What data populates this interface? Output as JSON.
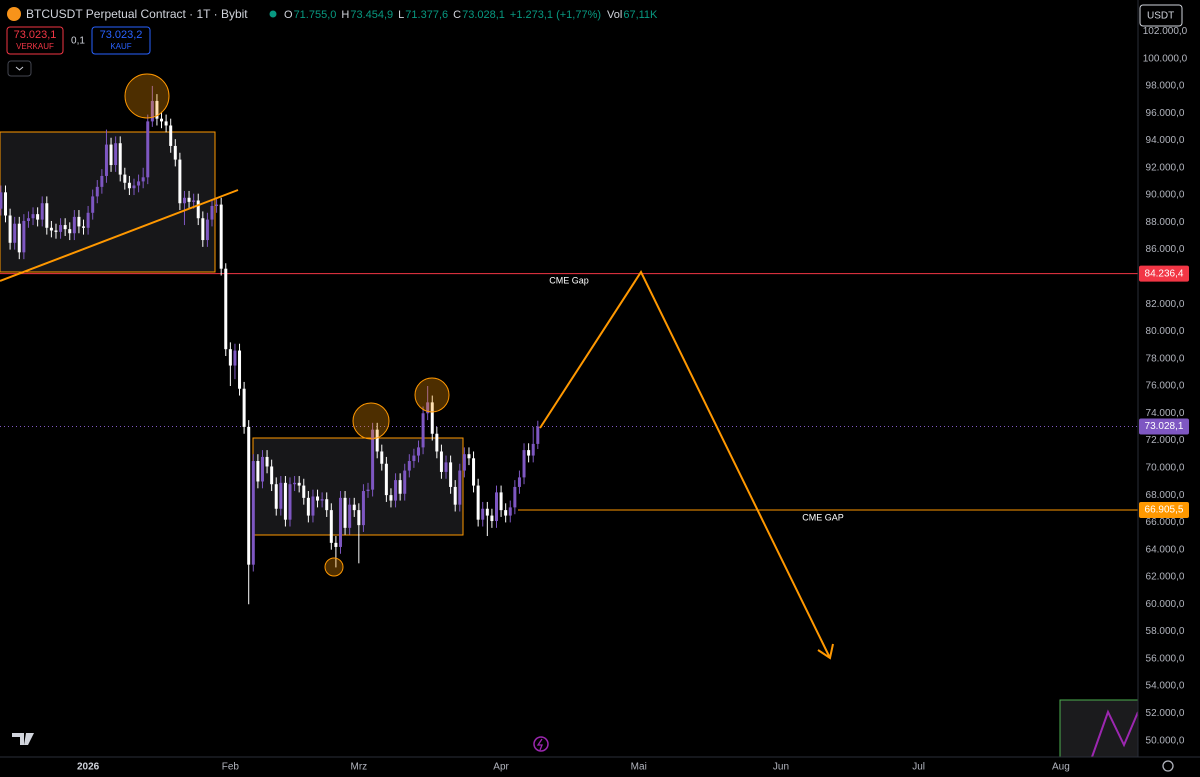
{
  "toolbar": {
    "symbol": "BTCUSDT Perpetual Contract · 1T · Bybit",
    "ohlc": [
      {
        "label": "O",
        "value": "71.755,0"
      },
      {
        "label": "H",
        "value": "73.454,9"
      },
      {
        "label": "L",
        "value": "71.377,6"
      },
      {
        "label": "C",
        "value": "73.028,1"
      }
    ],
    "change": "+1.273,1 (+1,77%)",
    "volume_label": "Vol",
    "volume": "67,11K",
    "sell": {
      "price": "73.023,1",
      "label": "VERKAUF"
    },
    "spread": "0,1",
    "buy": {
      "price": "73.023,2",
      "label": "KAUF"
    },
    "currency": "USDT"
  },
  "chart_data": {
    "type": "candlestick",
    "up_color": "#7e57c2",
    "down_color": "#ffffff",
    "grid": false,
    "xlim": [
      -19.2,
      228.8
    ],
    "xticks": [
      {
        "value": 0,
        "label": "2026"
      },
      {
        "value": 31,
        "label": "Feb"
      },
      {
        "value": 59,
        "label": "Mrz"
      },
      {
        "value": 90,
        "label": "Apr"
      },
      {
        "value": 120,
        "label": "Mai"
      },
      {
        "value": 151,
        "label": "Jun"
      },
      {
        "value": 181,
        "label": "Jul"
      },
      {
        "value": 212,
        "label": "Aug"
      }
    ],
    "ylim": [
      48800,
      104300
    ],
    "yticks": [
      {
        "value": 50000,
        "label": "50.000,0"
      },
      {
        "value": 52000,
        "label": "52.000,0"
      },
      {
        "value": 54000,
        "label": "54.000,0"
      },
      {
        "value": 56000,
        "label": "56.000,0"
      },
      {
        "value": 58000,
        "label": "58.000,0"
      },
      {
        "value": 60000,
        "label": "60.000,0"
      },
      {
        "value": 62000,
        "label": "62.000,0"
      },
      {
        "value": 64000,
        "label": "64.000,0"
      },
      {
        "value": 66000,
        "label": "66.000,0"
      },
      {
        "value": 68000,
        "label": "68.000,0"
      },
      {
        "value": 70000,
        "label": "70.000,0"
      },
      {
        "value": 72000,
        "label": "72.000,0"
      },
      {
        "value": 74000,
        "label": "74.000,0"
      },
      {
        "value": 76000,
        "label": "76.000,0"
      },
      {
        "value": 78000,
        "label": "78.000,0"
      },
      {
        "value": 80000,
        "label": "80.000,0"
      },
      {
        "value": 82000,
        "label": "82.000,0"
      },
      {
        "value": 84000,
        "label": "84.000,0"
      },
      {
        "value": 86000,
        "label": "86.000,0"
      },
      {
        "value": 88000,
        "label": "88.000,0"
      },
      {
        "value": 90000,
        "label": "90.000,0"
      },
      {
        "value": 92000,
        "label": "92.000,0"
      },
      {
        "value": 94000,
        "label": "94.000,0"
      },
      {
        "value": 96000,
        "label": "96.000,0"
      },
      {
        "value": 98000,
        "label": "98.000,0"
      },
      {
        "value": 100000,
        "label": "100.000,0"
      },
      {
        "value": 102000,
        "label": "102.000,0"
      }
    ],
    "x": [
      -19,
      -18,
      -17,
      -16,
      -15,
      -14,
      -13,
      -12,
      -11,
      -10,
      -9,
      -8,
      -7,
      -6,
      -5,
      -4,
      -3,
      -2,
      -1,
      0,
      1,
      2,
      3,
      4,
      5,
      6,
      7,
      8,
      9,
      10,
      11,
      12,
      13,
      14,
      15,
      16,
      17,
      18,
      19,
      20,
      21,
      22,
      23,
      24,
      25,
      26,
      27,
      28,
      29,
      30,
      31,
      32,
      33,
      34,
      35,
      36,
      37,
      38,
      39,
      40,
      41,
      42,
      43,
      44,
      45,
      46,
      47,
      48,
      49,
      50,
      51,
      52,
      53,
      54,
      55,
      56,
      57,
      58,
      59,
      60,
      61,
      62,
      63,
      64,
      65,
      66,
      67,
      68,
      69,
      70,
      71,
      72,
      73,
      74,
      75,
      76,
      77,
      78,
      79,
      80,
      81,
      82,
      83,
      84,
      85,
      86,
      87,
      88,
      89,
      90,
      91,
      92,
      93,
      94,
      95,
      96,
      97,
      98
    ],
    "open": [
      89000,
      90200,
      88500,
      86500,
      87900,
      85800,
      88100,
      88300,
      88600,
      88200,
      89400,
      87600,
      87400,
      87300,
      87800,
      87500,
      87200,
      88400,
      87700,
      87600,
      88700,
      89900,
      90600,
      91400,
      93700,
      92200,
      93800,
      91500,
      90900,
      90500,
      90700,
      91000,
      91300,
      95400,
      96900,
      95600,
      95400,
      95100,
      93600,
      92600,
      89400,
      89800,
      89500,
      89600,
      88300,
      86700,
      88200,
      89200,
      89300,
      84600,
      78700,
      77500,
      78600,
      75800,
      73000,
      62900,
      70500,
      69000,
      70800,
      70100,
      68800,
      67000,
      68900,
      66200,
      68800,
      68900,
      68700,
      67800,
      66500,
      67900,
      67600,
      67700,
      66900,
      64500,
      64200,
      67800,
      65600,
      67300,
      66900,
      65800,
      68300,
      68400,
      72800,
      71200,
      70300,
      68000,
      67600,
      69100,
      68100,
      69800,
      70500,
      70900,
      71500,
      74000,
      74800,
      72500,
      71200,
      69700,
      70400,
      68600,
      67300,
      69800,
      71000,
      70700,
      68700,
      66200,
      67000,
      66500,
      66100,
      68200,
      66900,
      66500,
      67100,
      68600,
      69300,
      71300,
      70900,
      71755
    ],
    "high": [
      90700,
      90700,
      89000,
      88400,
      88400,
      88600,
      88800,
      89100,
      89100,
      89900,
      89900,
      88100,
      87900,
      88300,
      88300,
      88000,
      88900,
      88900,
      88200,
      89200,
      90400,
      91100,
      91900,
      94800,
      94200,
      94300,
      94300,
      92000,
      91400,
      91200,
      91500,
      92000,
      95900,
      98000,
      97400,
      96100,
      95900,
      95600,
      94100,
      93100,
      90300,
      90300,
      90100,
      90100,
      88800,
      88700,
      89700,
      89800,
      89800,
      85000,
      79200,
      79100,
      79100,
      76300,
      73500,
      71000,
      71000,
      71300,
      71300,
      70600,
      69300,
      69400,
      69400,
      69300,
      69400,
      69400,
      69200,
      68300,
      68400,
      68400,
      68200,
      68200,
      67400,
      65000,
      68300,
      68300,
      67800,
      67800,
      67400,
      68800,
      68900,
      73300,
      73300,
      71700,
      70800,
      68500,
      69600,
      69600,
      70300,
      71000,
      71400,
      72000,
      74500,
      76000,
      75300,
      73000,
      71700,
      70900,
      70900,
      69100,
      70300,
      71500,
      71500,
      71200,
      69200,
      67500,
      67500,
      67000,
      68700,
      68700,
      67400,
      67600,
      69100,
      69800,
      71800,
      71800,
      73000,
      73454.9
    ],
    "low": [
      88500,
      88000,
      86000,
      86000,
      85300,
      85300,
      87600,
      87800,
      87700,
      87700,
      87100,
      86900,
      86800,
      86800,
      87000,
      86700,
      86700,
      87200,
      87100,
      87100,
      88200,
      89400,
      90100,
      90900,
      91700,
      91700,
      91000,
      90400,
      90000,
      90000,
      90200,
      90500,
      90800,
      95000,
      95100,
      94900,
      94600,
      93100,
      92100,
      88900,
      87800,
      89000,
      89000,
      87800,
      86200,
      86200,
      87700,
      88700,
      84100,
      78200,
      76000,
      76500,
      75300,
      72500,
      60000,
      62400,
      68500,
      68500,
      69600,
      68300,
      66500,
      66500,
      65700,
      65700,
      68300,
      68200,
      67300,
      66000,
      66000,
      67100,
      67100,
      66400,
      64000,
      62700,
      63700,
      65100,
      65100,
      66400,
      63000,
      65300,
      67800,
      67900,
      70700,
      69800,
      67500,
      67100,
      67100,
      67600,
      67600,
      69300,
      70000,
      70400,
      71000,
      73500,
      72000,
      70700,
      69200,
      69200,
      68100,
      66800,
      66800,
      69300,
      70200,
      68200,
      65700,
      65700,
      65000,
      65600,
      65600,
      66400,
      66000,
      66000,
      66600,
      68100,
      68800,
      70400,
      70400,
      71377.6
    ],
    "close": [
      90200,
      88500,
      86500,
      87900,
      85800,
      88100,
      88300,
      88600,
      88200,
      89400,
      87600,
      87400,
      87300,
      87800,
      87500,
      87200,
      88400,
      87700,
      87600,
      88700,
      89900,
      90600,
      91400,
      93700,
      92200,
      93800,
      91500,
      90900,
      90500,
      90700,
      91000,
      91300,
      95400,
      96900,
      95600,
      95400,
      95100,
      93600,
      92600,
      89400,
      89800,
      89500,
      89600,
      88300,
      86700,
      88200,
      89200,
      89300,
      84600,
      78700,
      77500,
      78600,
      75800,
      73000,
      62900,
      70500,
      69000,
      70800,
      70100,
      68800,
      67000,
      68900,
      66200,
      68800,
      68900,
      68700,
      67800,
      66500,
      67900,
      67600,
      67700,
      66900,
      64500,
      64200,
      67800,
      65600,
      67300,
      66900,
      65800,
      68300,
      68400,
      72800,
      71200,
      70300,
      68000,
      67600,
      69100,
      68100,
      69800,
      70500,
      70900,
      71500,
      74000,
      74800,
      72500,
      71200,
      69700,
      70400,
      68600,
      67300,
      69800,
      71000,
      70700,
      68700,
      66200,
      67000,
      66500,
      66100,
      68200,
      66900,
      66500,
      67100,
      68600,
      69300,
      71300,
      70900,
      71755,
      73028.1
    ],
    "hlines": [
      {
        "value": 84236.4,
        "label": "84.236,4",
        "color": "#f23645"
      },
      {
        "value": 73028.1,
        "label": "73.028,1",
        "color": "#7e57c2"
      },
      {
        "value": 66905.5,
        "label": "66.905,5",
        "color": "#ff9800"
      }
    ],
    "annotations": [
      "CME Gap",
      "CME GAP"
    ]
  }
}
